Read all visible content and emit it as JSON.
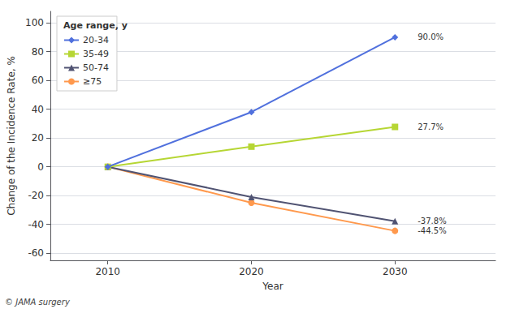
{
  "chart_data": {
    "type": "line",
    "x": [
      2010,
      2020,
      2030
    ],
    "series": [
      {
        "name": "20-34",
        "values": [
          0,
          38,
          90.0
        ],
        "marker": "diamond"
      },
      {
        "name": "35-49",
        "values": [
          0,
          14,
          27.7
        ],
        "marker": "square"
      },
      {
        "name": "50-74",
        "values": [
          0,
          -21,
          -37.8
        ],
        "marker": "triangle"
      },
      {
        "name": "≥75",
        "values": [
          0,
          -25,
          -44.5
        ],
        "marker": "circle"
      }
    ],
    "annotations": [
      {
        "x": 2030,
        "y": 90.0,
        "text": "90.0%"
      },
      {
        "x": 2030,
        "y": 27.7,
        "text": "27.7%"
      },
      {
        "x": 2030,
        "y": -37.8,
        "text": "-37.8%"
      },
      {
        "x": 2030,
        "y": -44.5,
        "text": "-44.5%"
      }
    ],
    "xlabel": "Year",
    "ylabel": "Change of the Incidence Rate, %",
    "legend_title": "Age range, y",
    "caption": "© JAMA surgery",
    "xlim": [
      2006,
      2037
    ],
    "ylim": [
      -65,
      108
    ],
    "xticks": [
      2010,
      2020,
      2030
    ],
    "yticks": [
      -60,
      -40,
      -20,
      0,
      20,
      40,
      60,
      80,
      100
    ],
    "grid": true,
    "legend": "upper left"
  }
}
